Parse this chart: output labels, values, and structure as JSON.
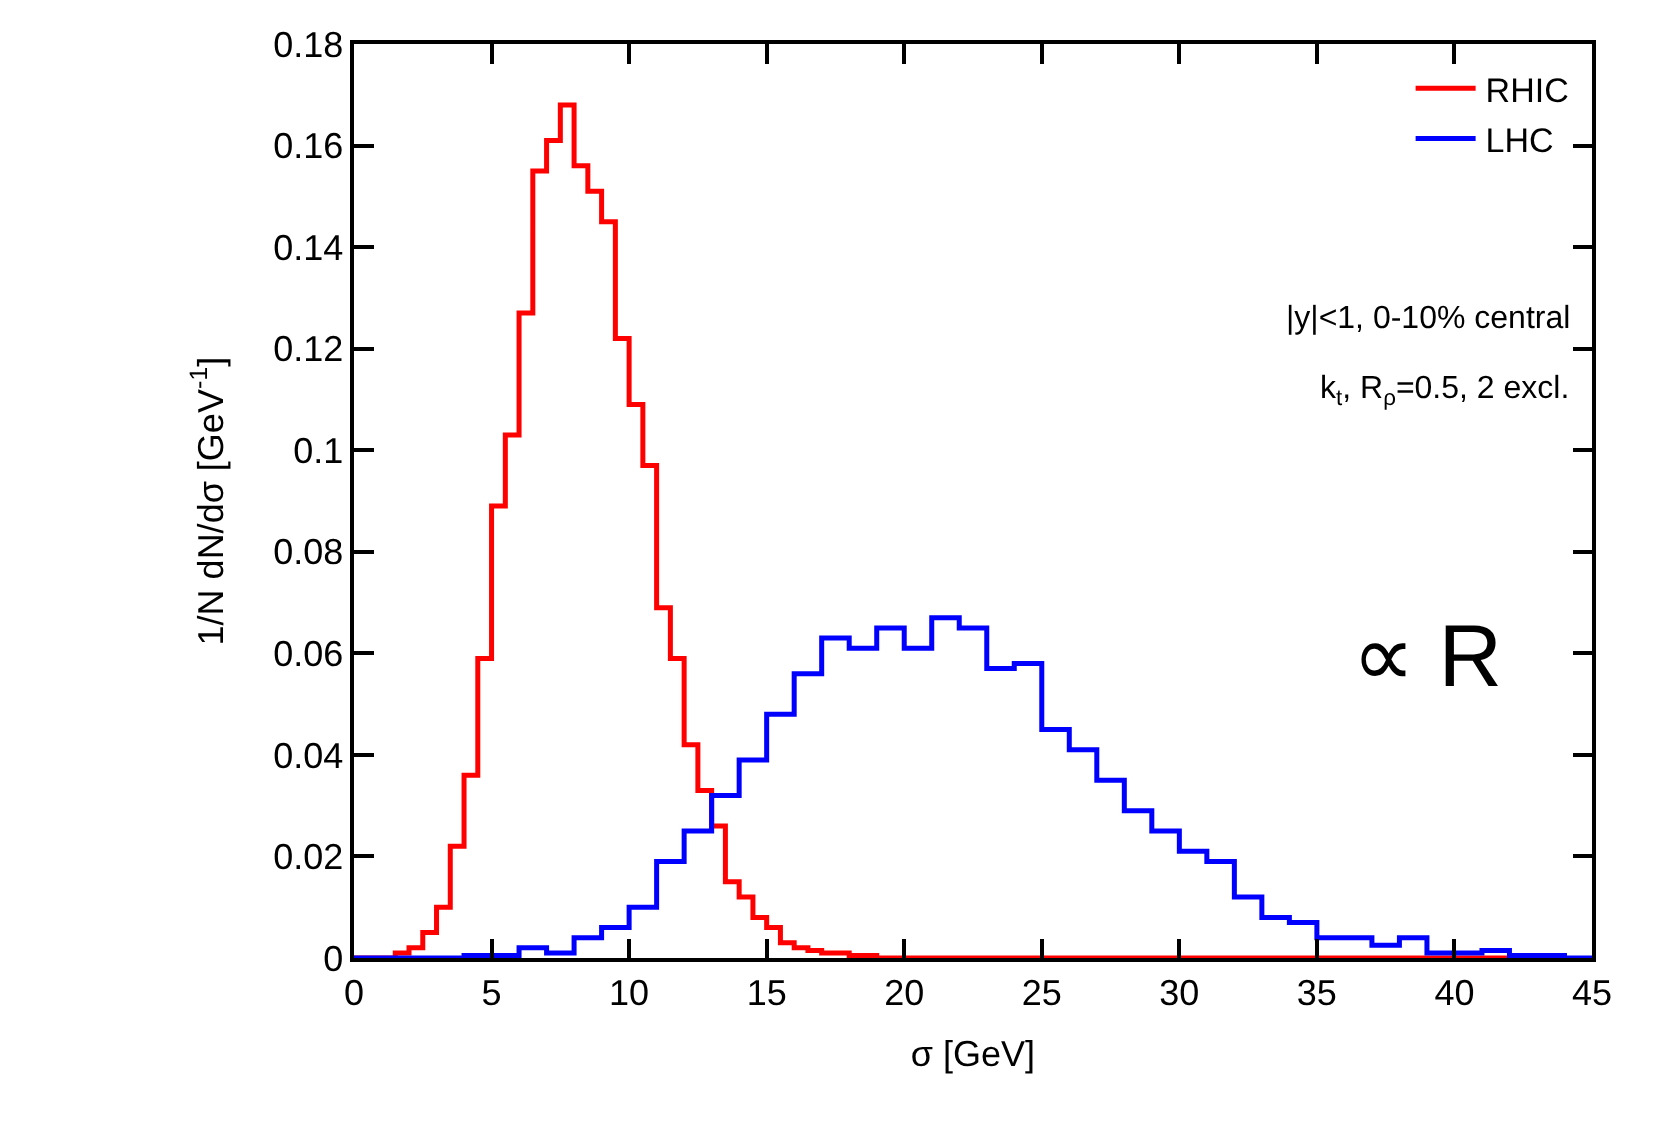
{
  "chart_data": {
    "type": "step",
    "xlabel": "σ [GeV]",
    "ylabel": "1/N dN/dσ [GeV$^{-1}$]",
    "xlim": [
      0,
      45
    ],
    "xticks": [
      0,
      5,
      10,
      15,
      20,
      25,
      30,
      35,
      40,
      45
    ],
    "ylim": [
      0,
      0.18
    ],
    "yticks": [
      0,
      0.02,
      0.04,
      0.06,
      0.08,
      0.1,
      0.12,
      0.14,
      0.16,
      0.18
    ],
    "legend": "top right",
    "series": [
      {
        "name": "RHIC",
        "color": "#ff0000",
        "x": [
          0,
          0.5,
          1,
          1.5,
          2,
          2.5,
          3,
          3.5,
          4,
          4.5,
          5,
          5.5,
          6,
          6.5,
          7,
          7.5,
          8,
          8.5,
          9,
          9.5,
          10,
          10.5,
          11,
          11.5,
          12,
          12.5,
          13,
          13.5,
          14,
          14.5,
          15,
          15.5,
          16,
          16.5,
          17,
          17.5,
          18,
          18.5,
          19,
          19.5,
          20,
          20.5,
          21,
          21.5,
          22,
          22.5,
          23,
          23.5,
          24,
          24.5,
          25,
          25.5,
          26,
          26.5,
          27,
          27.5,
          28,
          28.5,
          29,
          29.5,
          30,
          30.5,
          31,
          31.5,
          32,
          32.5,
          33,
          33.5,
          34,
          34.5,
          35,
          35.5,
          36,
          36.5,
          37,
          37.5,
          38,
          38.5,
          39,
          39.5,
          40,
          40.5,
          41,
          41.5,
          42,
          42.5,
          43
        ],
        "values": [
          0,
          0,
          0,
          0.001,
          0.002,
          0.005,
          0.01,
          0.022,
          0.036,
          0.059,
          0.089,
          0.103,
          0.127,
          0.155,
          0.161,
          0.168,
          0.156,
          0.151,
          0.145,
          0.122,
          0.109,
          0.097,
          0.069,
          0.059,
          0.042,
          0.033,
          0.026,
          0.015,
          0.012,
          0.008,
          0.006,
          0.003,
          0.002,
          0.0015,
          0.001,
          0.001,
          0.0005,
          0.0005,
          0,
          0,
          0,
          0,
          0,
          0,
          0,
          0,
          0,
          0,
          0,
          0,
          0,
          0,
          0,
          0,
          0,
          0,
          0,
          0,
          0,
          0,
          0,
          0,
          0,
          0,
          0,
          0,
          0,
          0,
          0,
          0,
          0,
          0,
          0,
          0,
          0,
          0,
          0,
          0,
          0,
          0,
          0,
          0,
          0,
          0,
          0,
          0,
          0
        ]
      },
      {
        "name": "LHC",
        "color": "#0000ff",
        "x": [
          0,
          1,
          2,
          3,
          4,
          5,
          6,
          7,
          8,
          9,
          10,
          11,
          12,
          13,
          14,
          15,
          16,
          17,
          18,
          19,
          20,
          21,
          22,
          23,
          24,
          25,
          26,
          27,
          28,
          29,
          30,
          31,
          32,
          33,
          34,
          35,
          36,
          37,
          38,
          39,
          40,
          41,
          42,
          43,
          44,
          45
        ],
        "values": [
          0,
          0,
          0,
          0,
          0.0005,
          0.0005,
          0.002,
          0.001,
          0.004,
          0.006,
          0.01,
          0.019,
          0.025,
          0.032,
          0.039,
          0.048,
          0.056,
          0.063,
          0.061,
          0.065,
          0.061,
          0.067,
          0.065,
          0.057,
          0.058,
          0.045,
          0.041,
          0.035,
          0.029,
          0.025,
          0.021,
          0.019,
          0.012,
          0.008,
          0.007,
          0.004,
          0.004,
          0.0025,
          0.004,
          0.001,
          0.001,
          0.0015,
          0.0005,
          0.0005,
          0,
          0
        ]
      }
    ],
    "annotations": [
      "|y|<1, 0-10% central",
      "k$_{t}$, R$_{ρ}$=0.5, 2 excl.",
      "∝ R"
    ]
  }
}
